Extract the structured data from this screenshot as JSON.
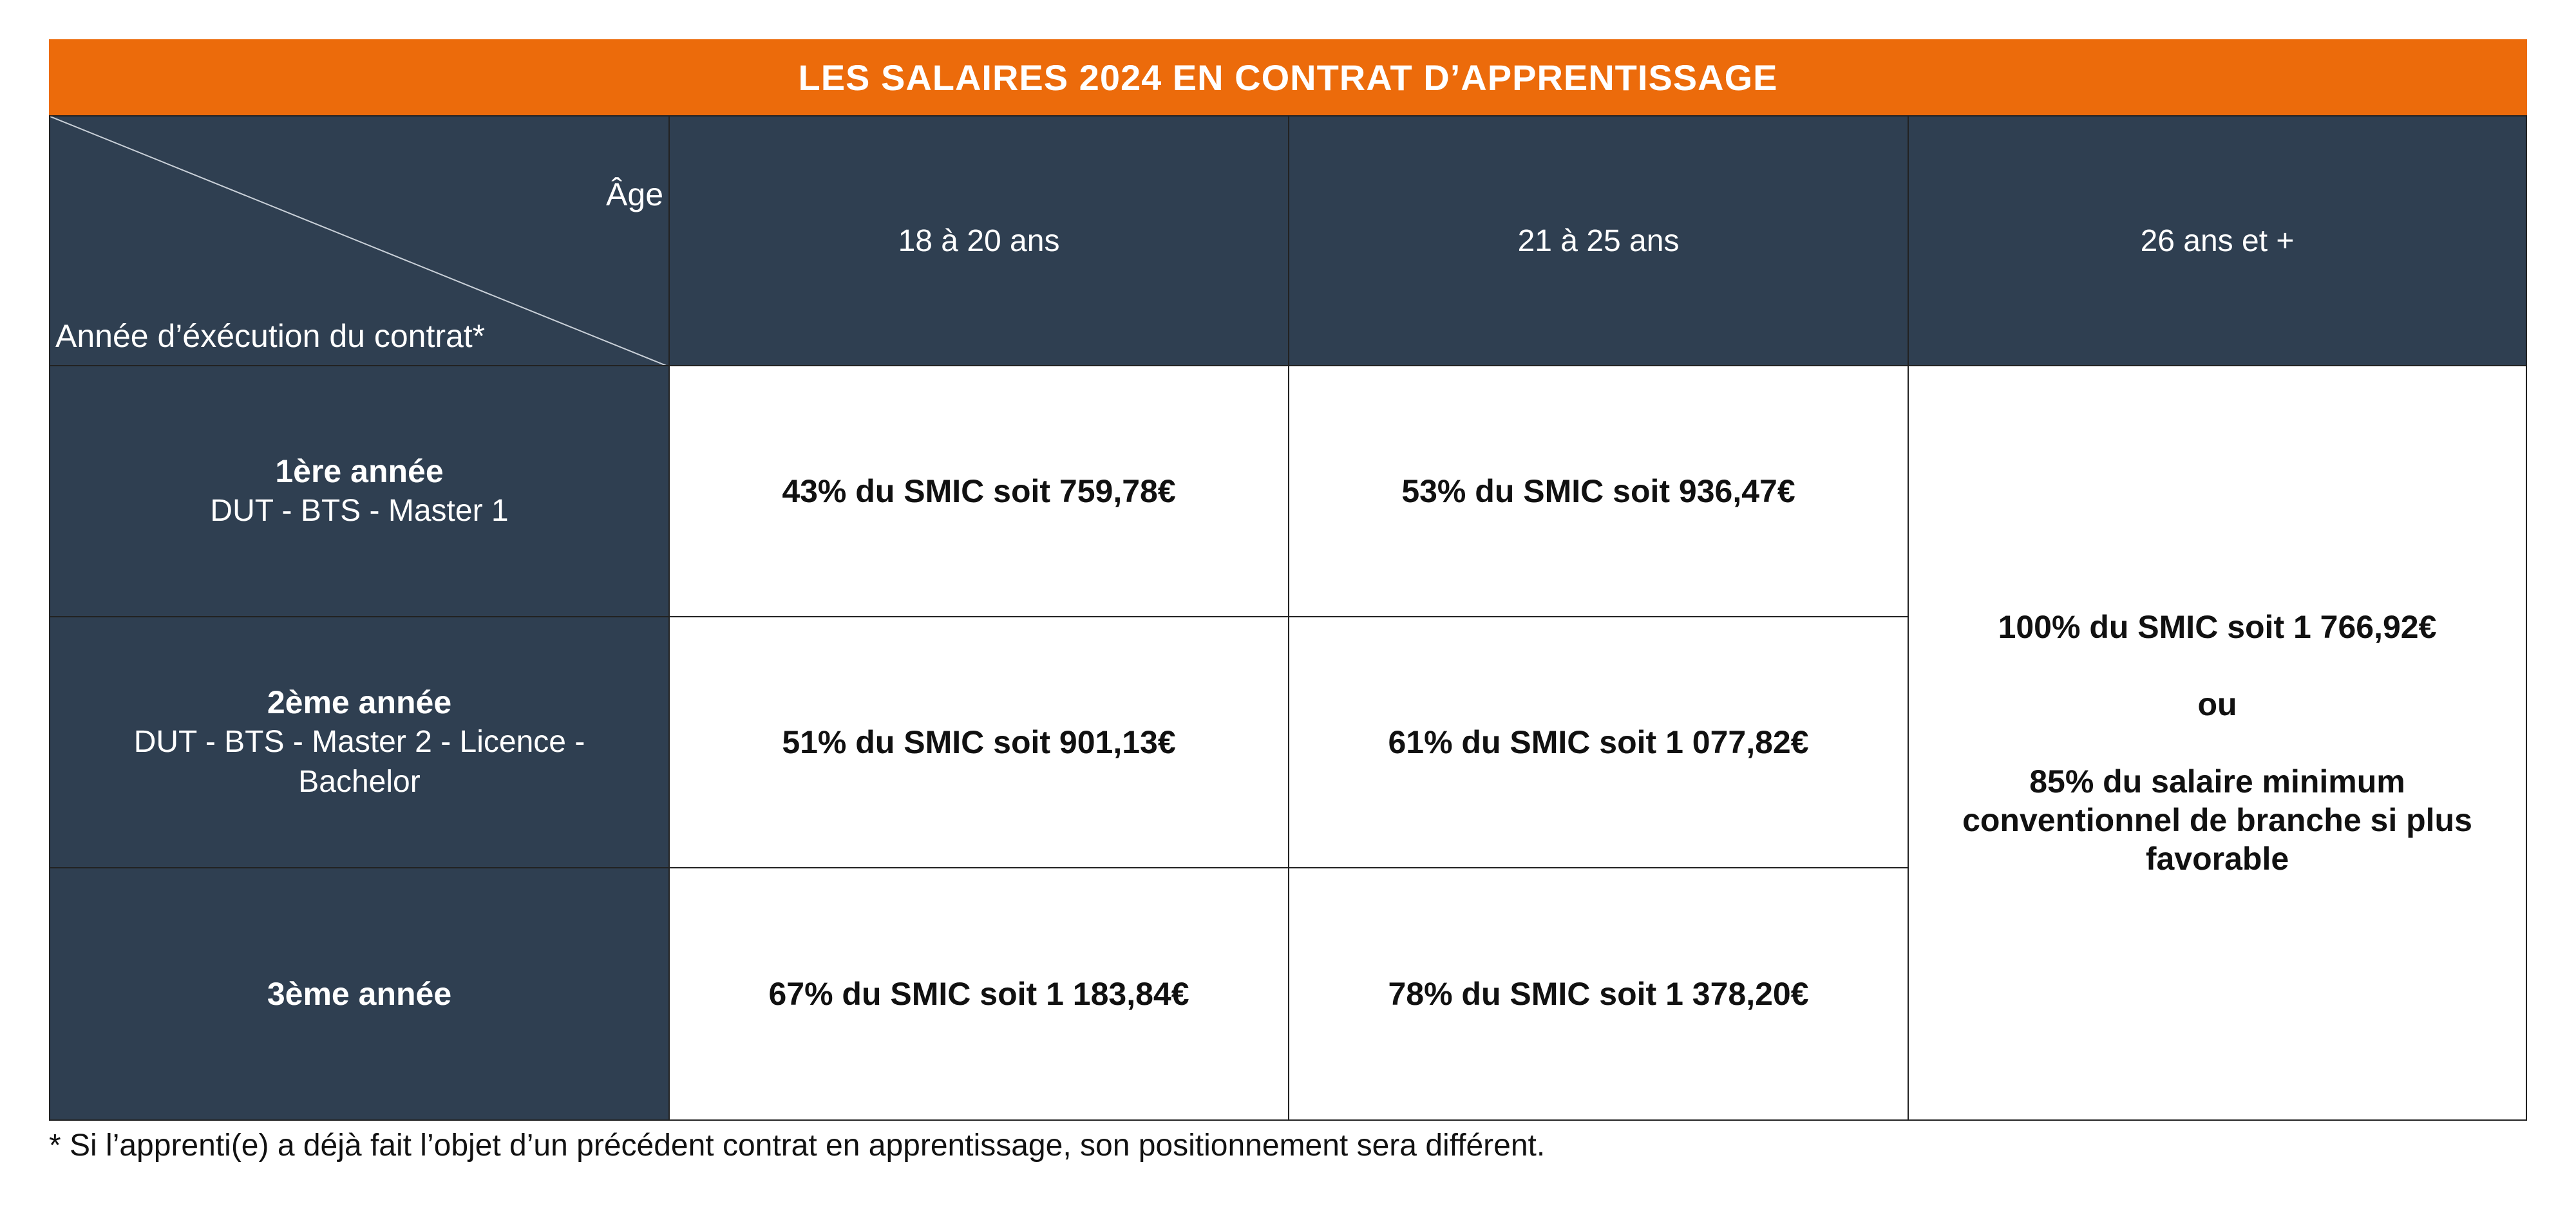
{
  "title": "LES SALAIRES 2024 EN CONTRAT D’APPRENTISSAGE",
  "header": {
    "corner_age": "Âge",
    "corner_year": "Année d’éxécution du contrat*",
    "columns": [
      "18 à 20 ans",
      "21 à 25 ans",
      "26 ans et +"
    ]
  },
  "rows": [
    {
      "title": "1ère année",
      "subtitle": "DUT - BTS - Master 1",
      "cells": [
        "43% du SMIC soit 759,78€",
        "53% du SMIC soit 936,47€"
      ]
    },
    {
      "title": "2ème année",
      "subtitle": "DUT - BTS - Master 2 - Licence - Bachelor",
      "cells": [
        "51% du SMIC soit 901,13€",
        "61% du SMIC soit 1 077,82€"
      ]
    },
    {
      "title": "3ème année",
      "subtitle": "",
      "cells": [
        "67% du SMIC soit 1 183,84€",
        "78% du SMIC soit 1 378,20€"
      ]
    }
  ],
  "merged_cell": {
    "line1": "100% du SMIC soit 1 766,92€",
    "line2": "ou",
    "line3": "85% du salaire minimum conventionnel de branche si plus favorable"
  },
  "footnote": "* Si l’apprenti(e) a déjà fait l’objet d’un précédent contrat en apprentissage, son positionnement sera différent.",
  "colors": {
    "banner": "#ec6b0b",
    "header_bg": "#2f3f51",
    "text_light": "#ffffff"
  }
}
